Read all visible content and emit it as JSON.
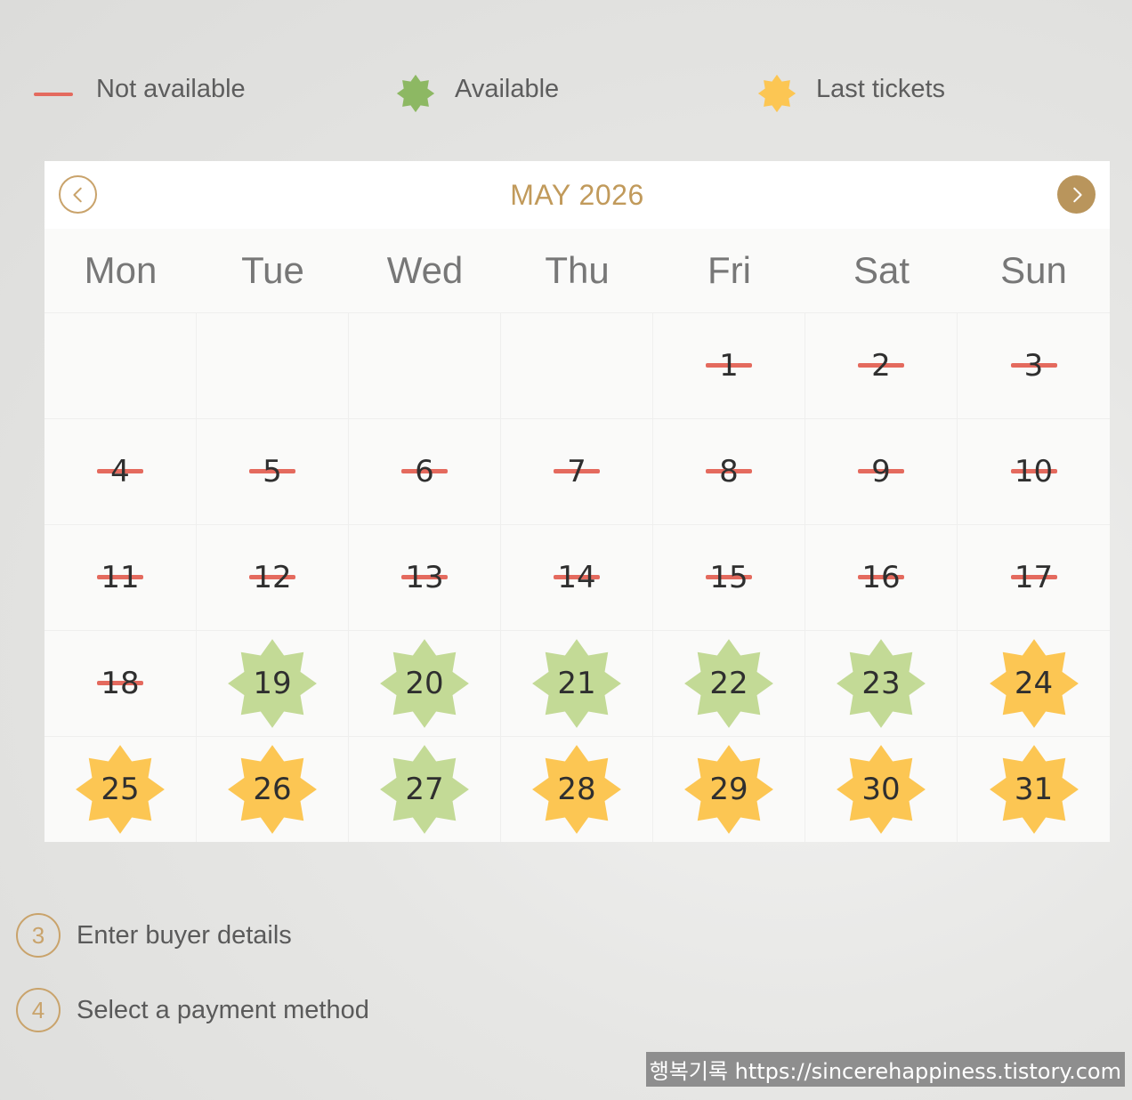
{
  "legend": {
    "not_available": "Not available",
    "available": "Available",
    "last_tickets": "Last tickets"
  },
  "colors": {
    "not_available": "#e46a5e",
    "available": "#c3da96",
    "available_legend": "#8db863",
    "last_tickets": "#fcc653",
    "accent": "#c19a5b"
  },
  "calendar": {
    "title": "MAY 2026",
    "prev_icon": "chevron-left-icon",
    "next_icon": "chevron-right-icon",
    "weekdays": [
      "Mon",
      "Tue",
      "Wed",
      "Thu",
      "Fri",
      "Sat",
      "Sun"
    ],
    "leading_blanks": 4,
    "days": [
      {
        "day": "1",
        "status": "not_available"
      },
      {
        "day": "2",
        "status": "not_available"
      },
      {
        "day": "3",
        "status": "not_available"
      },
      {
        "day": "4",
        "status": "not_available"
      },
      {
        "day": "5",
        "status": "not_available"
      },
      {
        "day": "6",
        "status": "not_available"
      },
      {
        "day": "7",
        "status": "not_available"
      },
      {
        "day": "8",
        "status": "not_available"
      },
      {
        "day": "9",
        "status": "not_available"
      },
      {
        "day": "10",
        "status": "not_available"
      },
      {
        "day": "11",
        "status": "not_available"
      },
      {
        "day": "12",
        "status": "not_available"
      },
      {
        "day": "13",
        "status": "not_available"
      },
      {
        "day": "14",
        "status": "not_available"
      },
      {
        "day": "15",
        "status": "not_available"
      },
      {
        "day": "16",
        "status": "not_available"
      },
      {
        "day": "17",
        "status": "not_available"
      },
      {
        "day": "18",
        "status": "not_available"
      },
      {
        "day": "19",
        "status": "available"
      },
      {
        "day": "20",
        "status": "available"
      },
      {
        "day": "21",
        "status": "available"
      },
      {
        "day": "22",
        "status": "available"
      },
      {
        "day": "23",
        "status": "available"
      },
      {
        "day": "24",
        "status": "last_tickets"
      },
      {
        "day": "25",
        "status": "last_tickets"
      },
      {
        "day": "26",
        "status": "last_tickets"
      },
      {
        "day": "27",
        "status": "available"
      },
      {
        "day": "28",
        "status": "last_tickets"
      },
      {
        "day": "29",
        "status": "last_tickets"
      },
      {
        "day": "30",
        "status": "last_tickets"
      },
      {
        "day": "31",
        "status": "last_tickets"
      }
    ]
  },
  "steps": [
    {
      "number": "3",
      "label": "Enter buyer details"
    },
    {
      "number": "4",
      "label": "Select a payment method"
    }
  ],
  "watermark": "행복기록 https://sincerehappiness.tistory.com"
}
